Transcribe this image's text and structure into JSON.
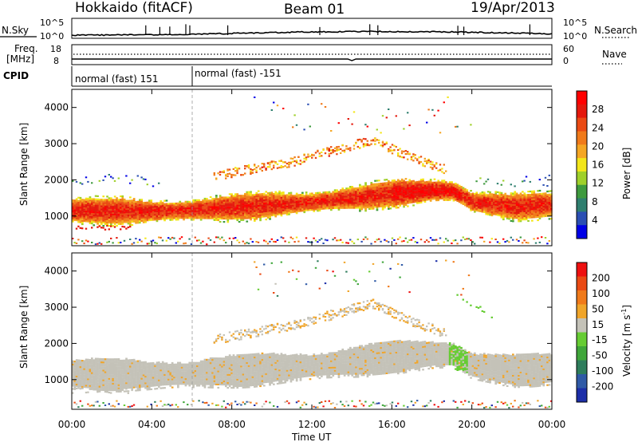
{
  "header": {
    "left_title": "Hokkaido (fitACF)",
    "center_title": "Beam 01",
    "right_title": "19/Apr/2013"
  },
  "top_panel": {
    "left_label": "N.Sky",
    "right_label": "N.Search",
    "left_ticks": [
      "10^5",
      "10^0"
    ],
    "right_ticks": [
      "10^5",
      "10^0"
    ]
  },
  "freq_panel": {
    "left_label_top": "Freq.",
    "left_label_unit": "[MHz]",
    "right_label": "Nave",
    "left_ticks": [
      "18",
      "8"
    ],
    "right_ticks": [
      "60",
      "0"
    ]
  },
  "cpid_panel": {
    "label": "CPID",
    "segments": [
      "normal (fast) 151",
      "normal (fast) -151"
    ]
  },
  "x_axis": {
    "label": "Time UT",
    "ticks": [
      "00:00",
      "04:00",
      "08:00",
      "12:00",
      "16:00",
      "20:00",
      "00:00"
    ]
  },
  "power_colorbar": {
    "label": "Power [dB]",
    "ticks": [
      "28",
      "24",
      "20",
      "16",
      "12",
      "8",
      "4"
    ]
  },
  "velocity_colorbar": {
    "label": "Velocity [m s",
    "label_sup": "-1",
    "label_end": "]",
    "ticks": [
      "200",
      "100",
      "50",
      "15",
      "-15",
      "-50",
      "-100",
      "-200"
    ]
  },
  "colors": {
    "power_scale": [
      "#0000e6",
      "#2b4fb3",
      "#2f7f6f",
      "#3e9a3e",
      "#9fd02a",
      "#f3e61a",
      "#f5a623",
      "#f07a1a",
      "#ea4a14",
      "#e4180c",
      "#ff0000"
    ],
    "velocity_scale": [
      "#1c2ea8",
      "#2f5aa6",
      "#2e7d5c",
      "#3fa63a",
      "#66cc33",
      "#c4c2b8",
      "#f0a52a",
      "#f07a1a",
      "#ea4a14",
      "#ee1010"
    ],
    "ground_scatter": "#c4c2b8"
  },
  "chart_data": [
    {
      "type": "heatmap",
      "title": "",
      "xlabel": "Time UT",
      "ylabel": "Slant Range [km]",
      "xlim": [
        0,
        24
      ],
      "ylim": [
        180,
        4500
      ],
      "colorbar_label": "Power [dB]",
      "colorbar_range": [
        0,
        30
      ],
      "y_ticks": [
        1000,
        2000,
        3000,
        4000
      ],
      "description_series": [
        {
          "name": "main band center (km) vs UT hours",
          "x": [
            0,
            2,
            4,
            6,
            8,
            10,
            12,
            14,
            16,
            18,
            19,
            20,
            22,
            24
          ],
          "y": [
            1150,
            1130,
            1120,
            1150,
            1230,
            1300,
            1370,
            1480,
            1620,
            1700,
            1680,
            1380,
            1250,
            1300
          ]
        },
        {
          "name": "upper arc range (km) vs UT hours",
          "x": [
            7,
            9,
            11,
            13,
            15,
            17,
            18.5
          ],
          "y": [
            2100,
            2300,
            2500,
            2800,
            3100,
            2600,
            2300
          ]
        }
      ]
    },
    {
      "type": "heatmap",
      "title": "",
      "xlabel": "Time UT",
      "ylabel": "Slant Range [km]",
      "xlim": [
        0,
        24
      ],
      "ylim": [
        180,
        4500
      ],
      "colorbar_label": "Velocity [m s-1]",
      "colorbar_range": [
        -250,
        250
      ],
      "y_ticks": [
        1000,
        2000,
        3000,
        4000
      ]
    }
  ]
}
